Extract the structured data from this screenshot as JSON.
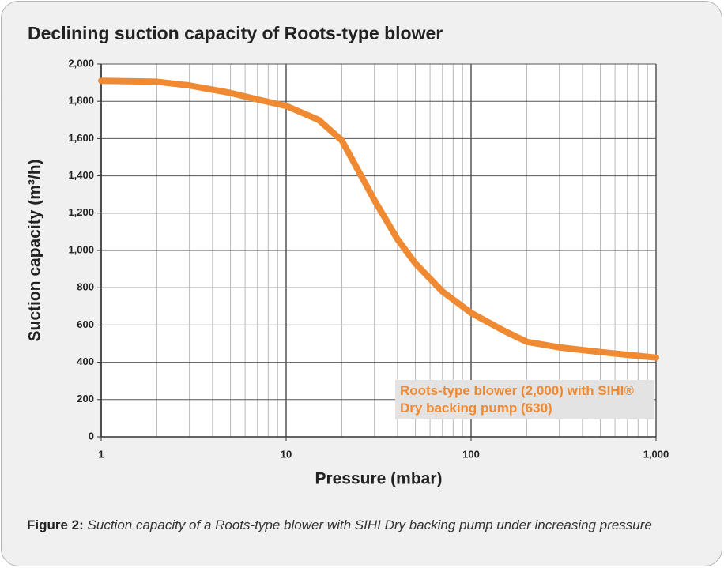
{
  "chart_data": {
    "type": "line",
    "title": "Declining suction capacity of Roots-type blower",
    "xlabel": "Pressure (mbar)",
    "ylabel": "Suction capacity (m³/h)",
    "xscale": "log",
    "x": [
      1,
      2,
      3,
      5,
      7,
      10,
      15,
      20,
      30,
      40,
      50,
      70,
      100,
      150,
      200,
      300,
      500,
      700,
      1000
    ],
    "series": [
      {
        "name": "Roots-type blower (2,000) with SIHI® Dry backing pump (630)",
        "color": "#f08a32",
        "values": [
          1910,
          1905,
          1885,
          1845,
          1810,
          1775,
          1700,
          1590,
          1270,
          1060,
          930,
          780,
          665,
          570,
          510,
          480,
          455,
          440,
          425
        ]
      }
    ],
    "xlim": [
      1,
      1000
    ],
    "xticks": [
      1,
      10,
      100,
      {
        "value": 1000,
        "label": "1,000"
      }
    ],
    "xminorticks": [
      2,
      3,
      4,
      5,
      6,
      7,
      8,
      9,
      20,
      30,
      40,
      50,
      60,
      70,
      80,
      90,
      200,
      300,
      400,
      500,
      600,
      700,
      800,
      900
    ],
    "ylim": [
      0,
      2000
    ],
    "yticks": [
      0,
      200,
      400,
      600,
      800,
      {
        "value": 1000,
        "label": "1,000"
      },
      {
        "value": 1200,
        "label": "1,200"
      },
      {
        "value": 1400,
        "label": "1,400"
      },
      {
        "value": 1600,
        "label": "1,600"
      },
      {
        "value": 1800,
        "label": "1,800"
      },
      {
        "value": 2000,
        "label": "2,000"
      }
    ],
    "grid": true,
    "legend": "lower right",
    "caption": {
      "label": "Figure 2:",
      "text": "Suction capacity of a Roots-type blower with SIHI Dry backing pump under increasing pressure"
    }
  }
}
